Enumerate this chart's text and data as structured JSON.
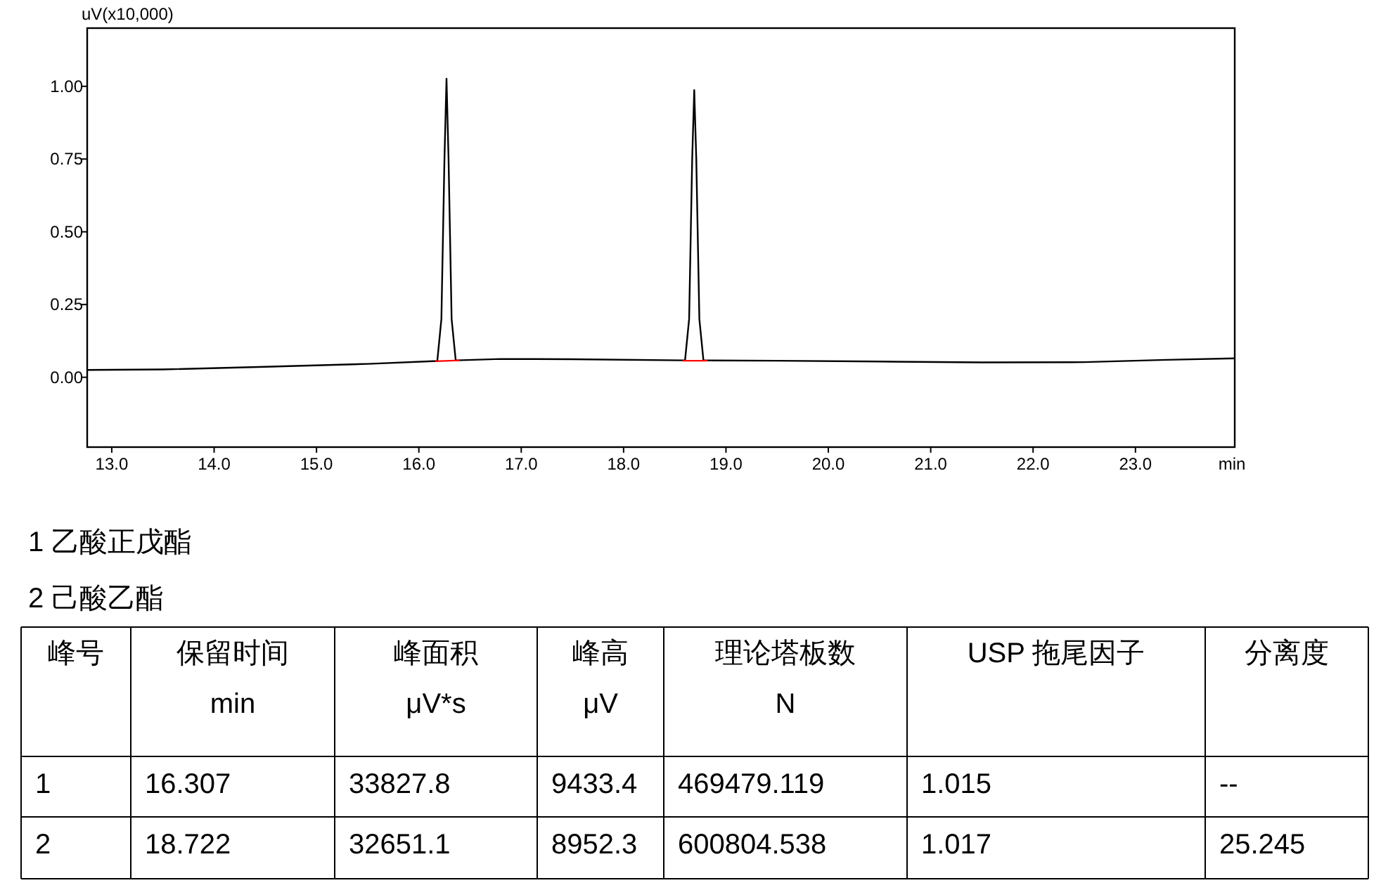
{
  "chart_data": [
    {
      "type": "line",
      "ylabel": "uV(x10,000)",
      "xlabel": "min",
      "xlim": [
        12.76,
        23.97
      ],
      "ylim": [
        -0.24,
        1.2
      ],
      "xticks": [
        {
          "value": 13,
          "label": "13.0"
        },
        {
          "value": 14,
          "label": "14.0"
        },
        {
          "value": 15,
          "label": "15.0"
        },
        {
          "value": 16,
          "label": "16.0"
        },
        {
          "value": 17,
          "label": "17.0"
        },
        {
          "value": 18,
          "label": "18.0"
        },
        {
          "value": 19,
          "label": "19.0"
        },
        {
          "value": 20,
          "label": "20.0"
        },
        {
          "value": 21,
          "label": "21.0"
        },
        {
          "value": 22,
          "label": "22.0"
        },
        {
          "value": 23,
          "label": "23.0"
        }
      ],
      "yticks": [
        {
          "value": 0,
          "label": "0.00"
        },
        {
          "value": 0.25,
          "label": "0.25"
        },
        {
          "value": 0.5,
          "label": "0.50"
        },
        {
          "value": 0.75,
          "label": "0.75"
        },
        {
          "value": 1,
          "label": "1.00"
        }
      ],
      "series": [
        {
          "color": "#000000",
          "x": [
            12.76,
            13.5,
            14.5,
            15.5,
            16.18,
            16.22,
            16.25,
            16.27,
            16.29,
            16.32,
            16.36,
            16.8,
            17.5,
            18.6,
            18.64,
            18.67,
            18.69,
            18.71,
            18.74,
            18.78,
            19.5,
            20.5,
            21.5,
            22.5,
            23.3,
            23.97
          ],
          "values": [
            0.025,
            0.027,
            0.036,
            0.046,
            0.056,
            0.2,
            0.75,
            1.026,
            0.75,
            0.2,
            0.058,
            0.063,
            0.062,
            0.058,
            0.2,
            0.75,
            0.987,
            0.75,
            0.2,
            0.058,
            0.057,
            0.054,
            0.051,
            0.052,
            0.06,
            0.065
          ]
        },
        {
          "color": "#ff0000",
          "x": [
            16.16,
            16.4
          ],
          "values": [
            0.055,
            0.058
          ]
        },
        {
          "color": "#ff0000",
          "x": [
            18.58,
            18.82
          ],
          "values": [
            0.057,
            0.057
          ]
        }
      ],
      "annotations": [
        "1 乙酸正戊酯",
        "2  己酸乙酯"
      ]
    },
    {
      "type": "other",
      "categories": [
        "峰号",
        "保留时间\nmin",
        "峰面积\nμV*s",
        "峰高\nμV",
        "理论塔板数\nN",
        "USP 拖尾因子",
        "分离度"
      ],
      "cell_labels": [
        [
          "1",
          "16.307",
          "33827.8",
          "9433.4",
          "469479.119",
          "1.015",
          "--"
        ],
        [
          "2",
          "18.722",
          "32651.1",
          "8952.3",
          "600804.538",
          "1.017",
          "25.245"
        ]
      ]
    }
  ]
}
